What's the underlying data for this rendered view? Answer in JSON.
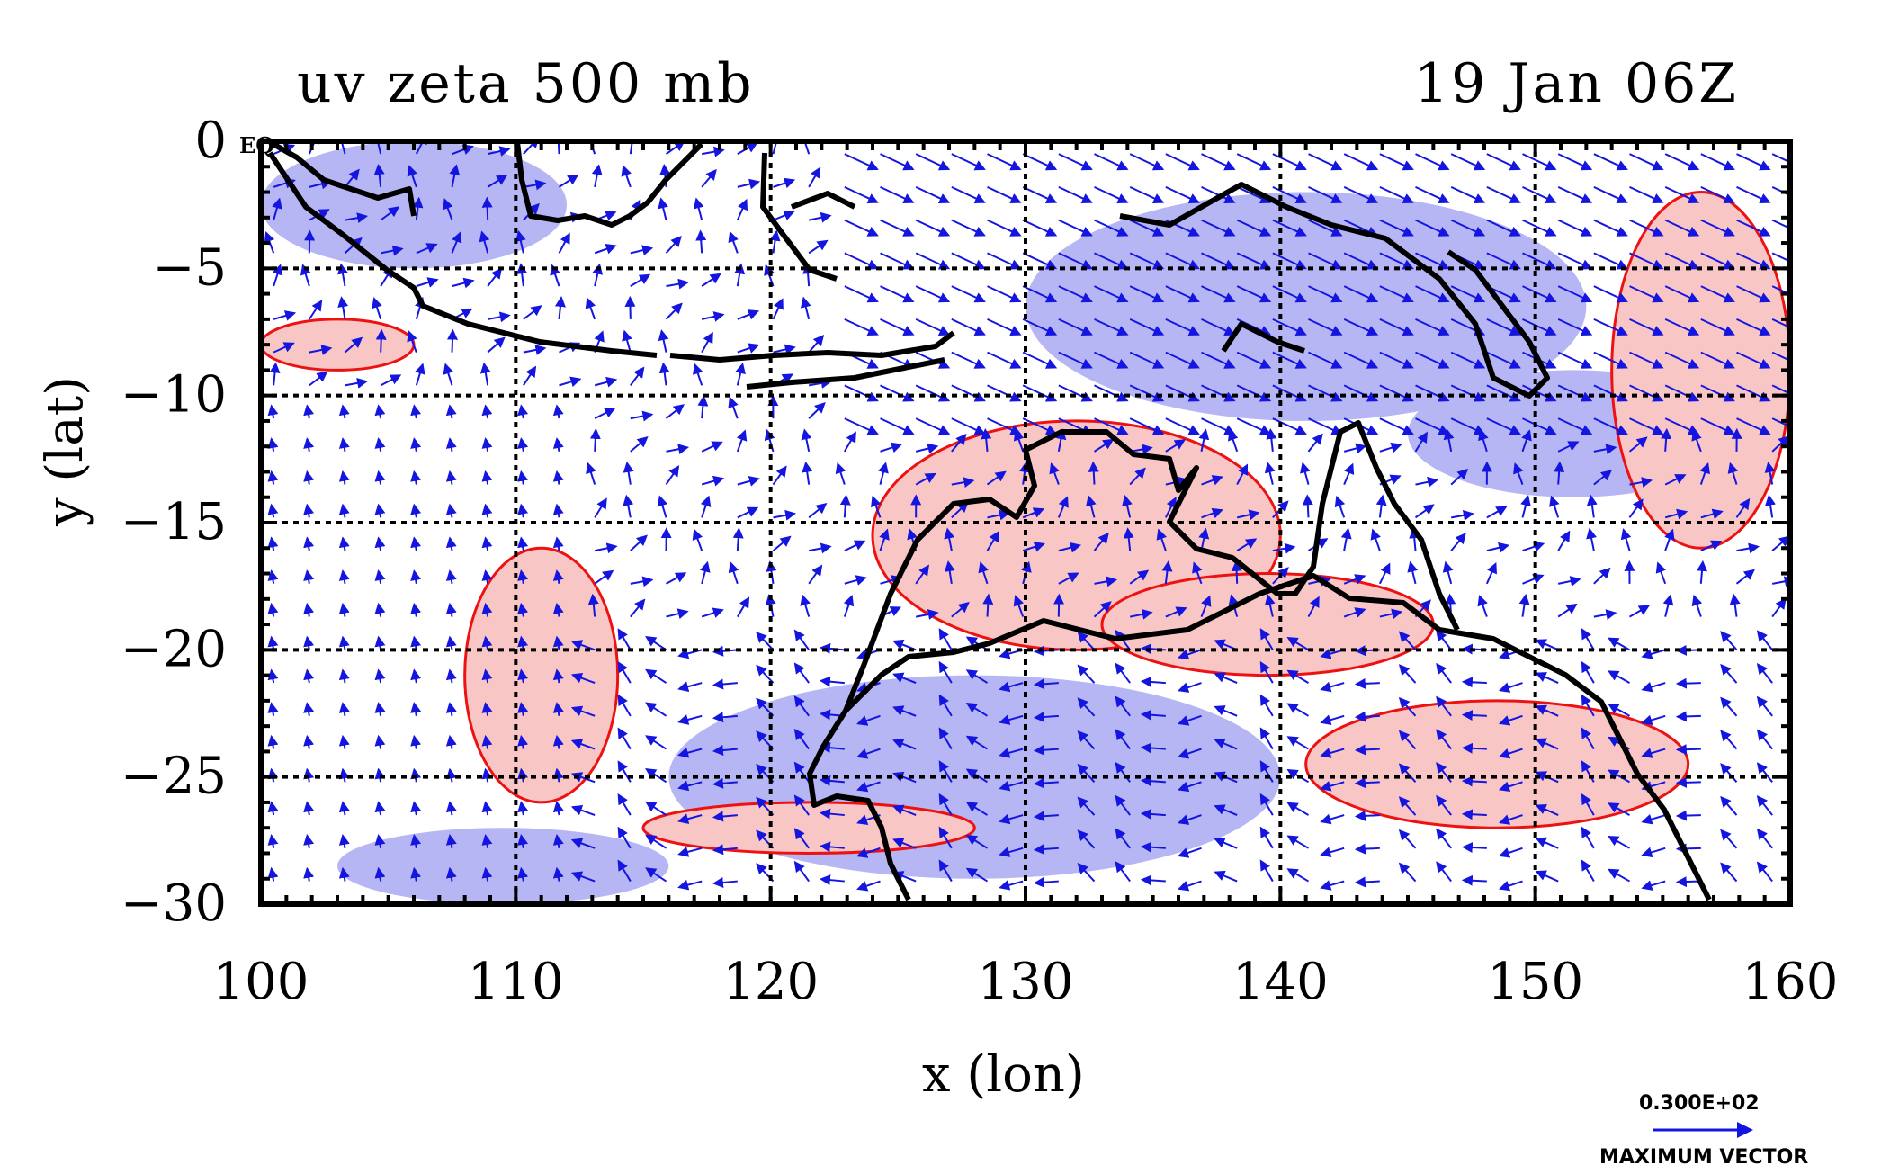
{
  "title_left": "uv zeta 500 mb",
  "title_right": "19 Jan 06Z",
  "x_axis": {
    "label": "x (lon)",
    "ticks": [
      "100",
      "110",
      "120",
      "130",
      "140",
      "150",
      "160"
    ]
  },
  "y_axis": {
    "label": "y (lat)",
    "ticks": [
      "0",
      "−5",
      "−10",
      "−15",
      "−20",
      "−25",
      "−30"
    ]
  },
  "eq_label": "EQ",
  "vector_key": {
    "value": "0.300E+02",
    "label": "MAXIMUM VECTOR"
  },
  "colors": {
    "positive_fill": "#f9c6c6",
    "positive_line": "#ee1111",
    "negative_fill": "#b6b6f5",
    "vector": "#1515e0",
    "coast": "#000000"
  },
  "chart_data": {
    "type": "heatmap",
    "variables": [
      "uv",
      "zeta"
    ],
    "level": "500 mb",
    "xlim": [
      100,
      160
    ],
    "ylim": [
      -30,
      0
    ],
    "x_ticks": [
      100,
      110,
      120,
      130,
      140,
      150,
      160
    ],
    "y_ticks": [
      0,
      -5,
      -10,
      -15,
      -20,
      -25,
      -30
    ],
    "grid": true,
    "vector_key_value": 30,
    "positive_vorticity_regions": [
      {
        "lon": [
          100,
          106
        ],
        "lat": [
          -7,
          -9
        ]
      },
      {
        "lon": [
          108,
          114
        ],
        "lat": [
          -16,
          -26
        ]
      },
      {
        "lon": [
          124,
          140
        ],
        "lat": [
          -11,
          -20
        ]
      },
      {
        "lon": [
          133,
          146
        ],
        "lat": [
          -17,
          -21
        ]
      },
      {
        "lon": [
          141,
          156
        ],
        "lat": [
          -22,
          -27
        ]
      },
      {
        "lon": [
          153,
          160
        ],
        "lat": [
          -2,
          -16
        ]
      },
      {
        "lon": [
          115,
          128
        ],
        "lat": [
          -26,
          -28
        ]
      }
    ],
    "negative_vorticity_regions": [
      {
        "lon": [
          100,
          112
        ],
        "lat": [
          0,
          -5
        ]
      },
      {
        "lon": [
          130,
          152
        ],
        "lat": [
          -2,
          -11
        ]
      },
      {
        "lon": [
          145,
          158
        ],
        "lat": [
          -9,
          -14
        ]
      },
      {
        "lon": [
          116,
          140
        ],
        "lat": [
          -21,
          -29
        ]
      },
      {
        "lon": [
          103,
          116
        ],
        "lat": [
          -27,
          -30
        ]
      }
    ]
  }
}
